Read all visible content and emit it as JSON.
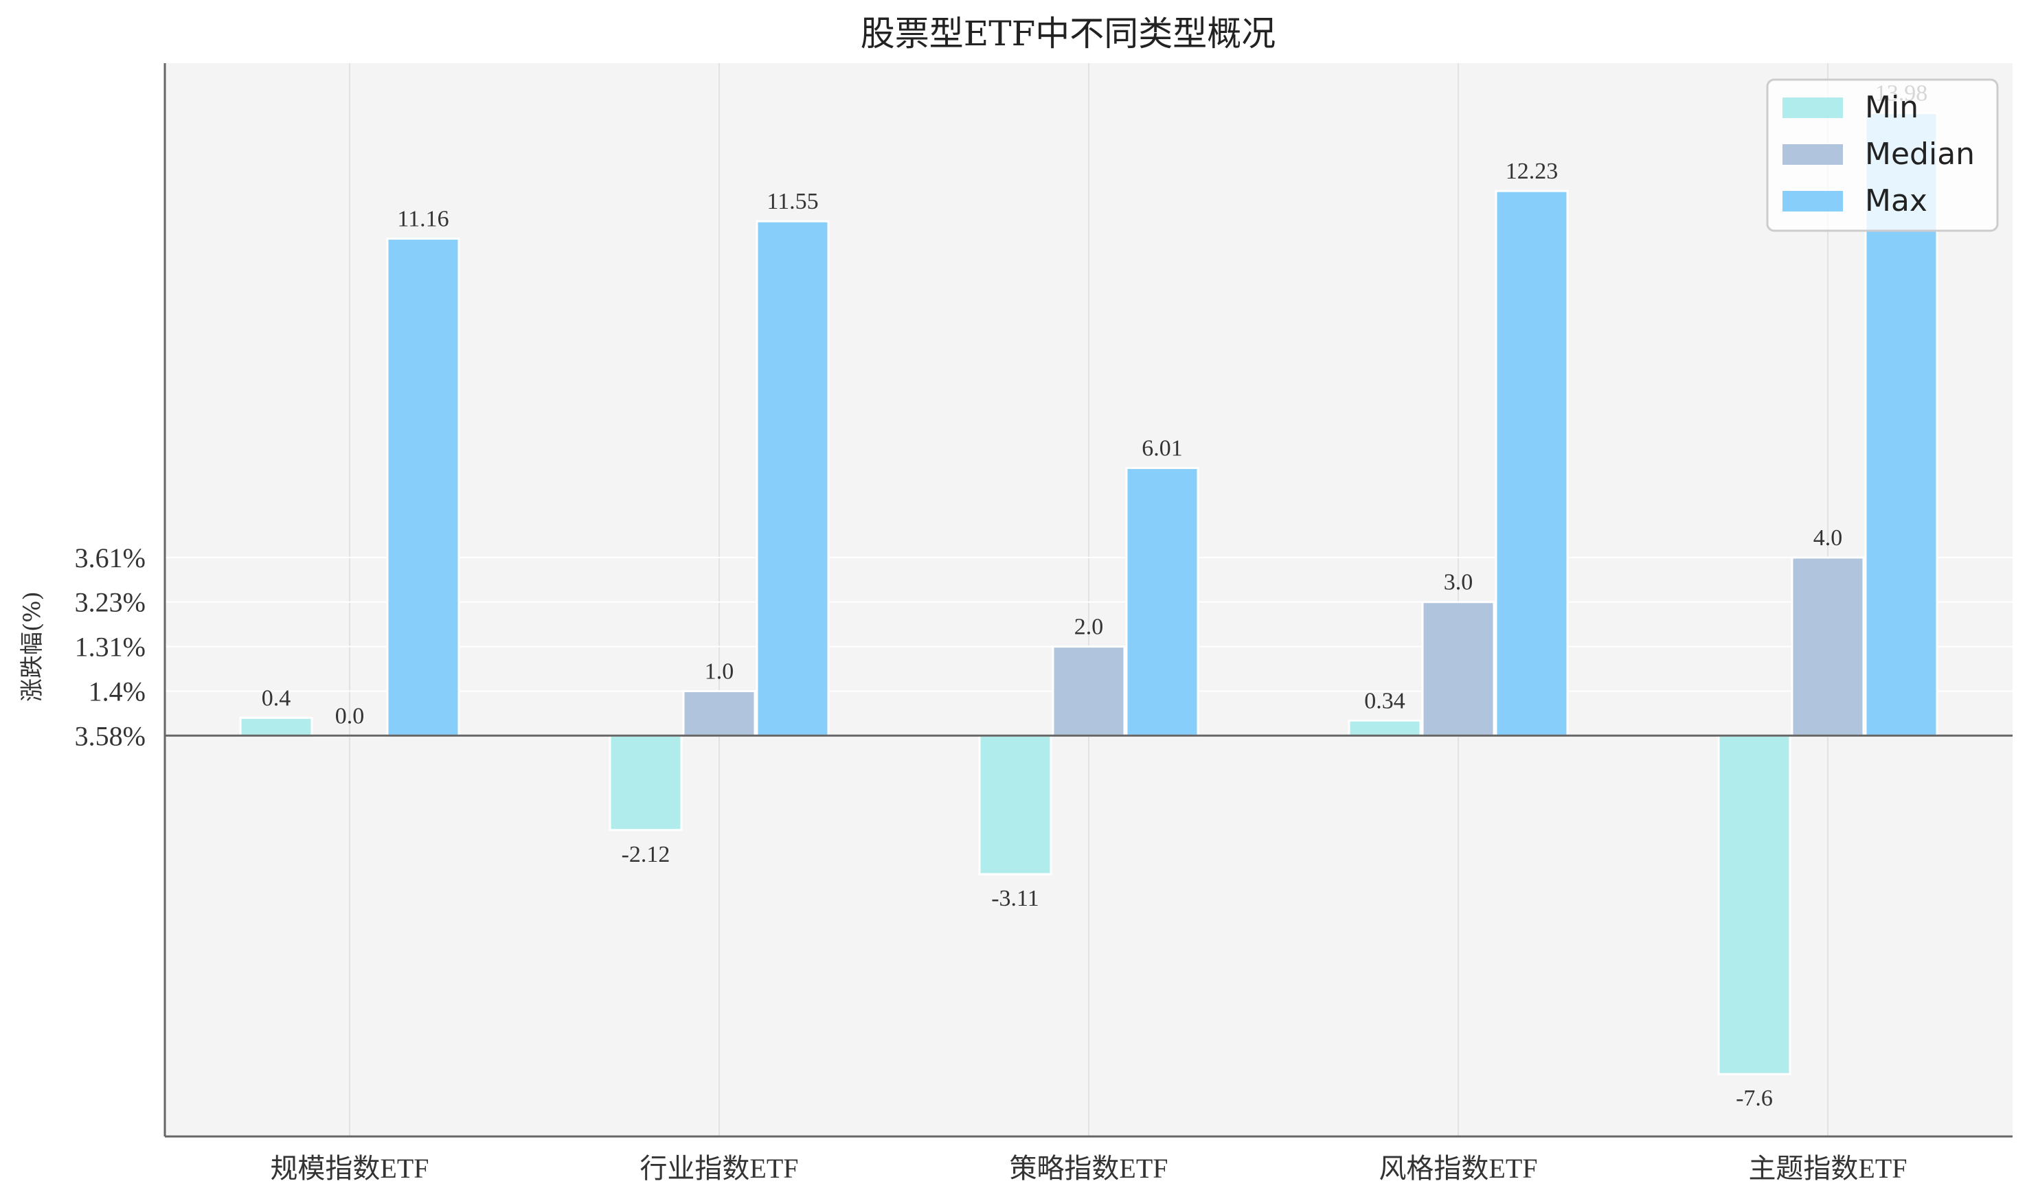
{
  "chart_data": {
    "type": "bar",
    "title": "股票型ETF中不同类型概况",
    "ylabel": "涨跌幅(%)",
    "xlabel": "",
    "categories": [
      "规模指数ETF",
      "行业指数ETF",
      "策略指数ETF",
      "风格指数ETF",
      "主题指数ETF"
    ],
    "series": [
      {
        "name": "Min",
        "color": "#b0ecec",
        "values": [
          0.4,
          -2.12,
          -3.11,
          0.34,
          -7.6
        ],
        "labels": [
          "0.4",
          "-2.12",
          "-3.11",
          "0.34",
          "-7.6"
        ]
      },
      {
        "name": "Median",
        "color": "#b0c4de",
        "values": [
          0.0,
          1.0,
          2.0,
          3.0,
          4.0
        ],
        "labels": [
          "0.0",
          "1.0",
          "2.0",
          "3.0",
          "4.0"
        ]
      },
      {
        "name": "Max",
        "color": "#87cefa",
        "values": [
          11.16,
          11.55,
          6.01,
          12.23,
          13.98
        ],
        "labels": [
          "11.16",
          "11.55",
          "6.01",
          "12.23",
          "13.98"
        ]
      }
    ],
    "ylim": [
      -9.0,
      15.1
    ],
    "yticks": [
      {
        "value": 0,
        "label": "3.58%"
      },
      {
        "value": 1,
        "label": "1.4%"
      },
      {
        "value": 2,
        "label": "1.31%"
      },
      {
        "value": 3,
        "label": "3.23%"
      },
      {
        "value": 4,
        "label": "3.61%"
      }
    ],
    "grid": true,
    "legend_position": "top-right",
    "background_color": "#f4f4f4"
  }
}
